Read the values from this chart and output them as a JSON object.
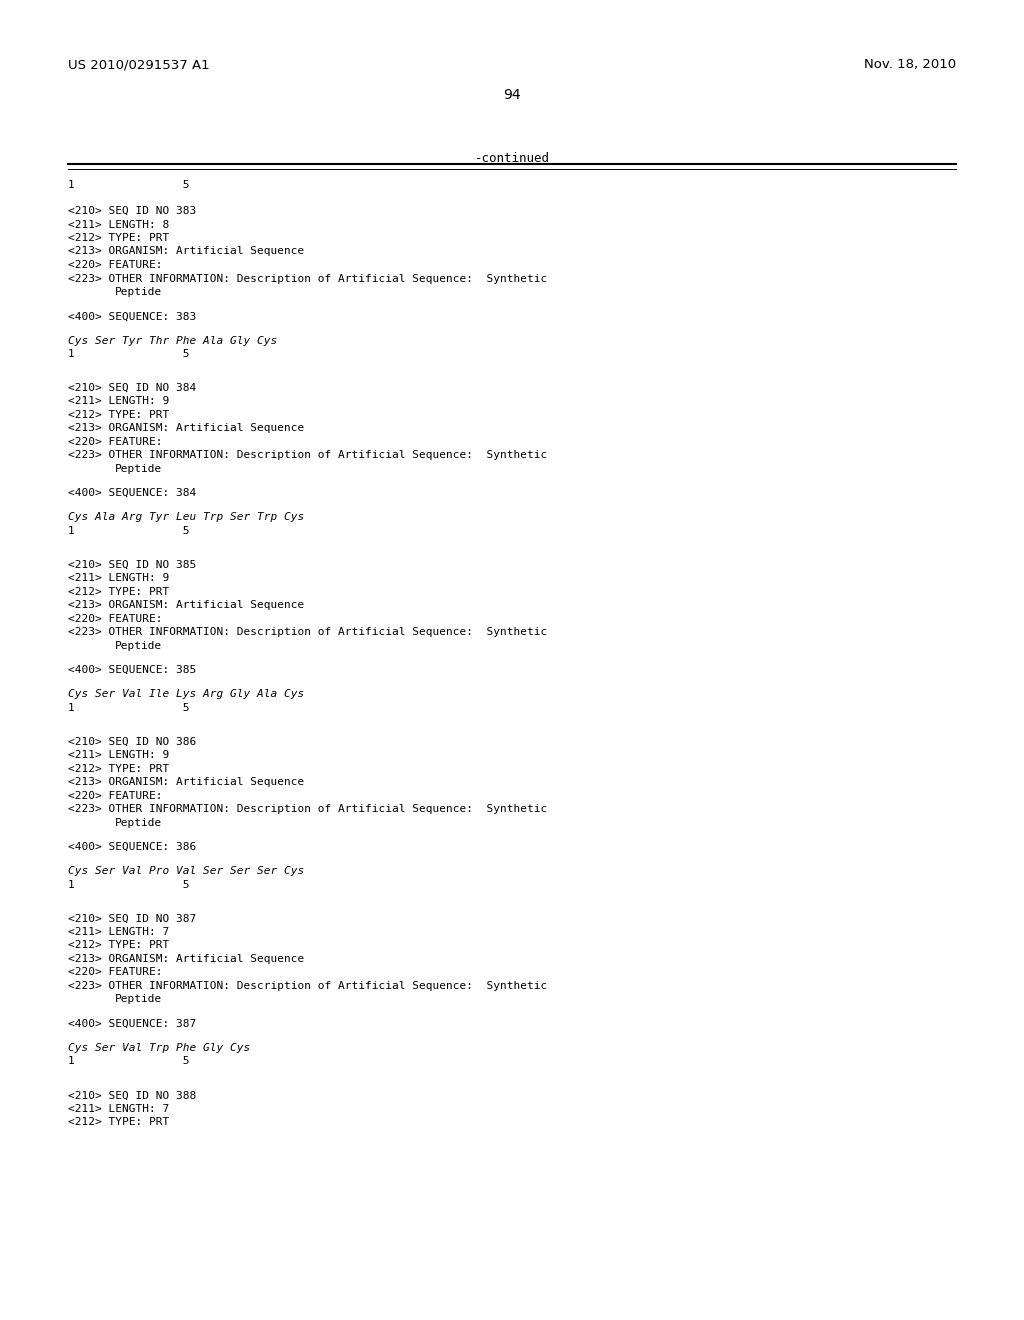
{
  "header_left": "US 2010/0291537 A1",
  "header_right": "Nov. 18, 2010",
  "page_number": "94",
  "continued_label": "-continued",
  "background_color": "#ffffff",
  "text_color": "#000000",
  "sequences": [
    {
      "seq_id": "383",
      "length": "8",
      "seq_line": "Cys Ser Tyr Thr Phe Ala Gly Cys"
    },
    {
      "seq_id": "384",
      "length": "9",
      "seq_line": "Cys Ala Arg Tyr Leu Trp Ser Trp Cys"
    },
    {
      "seq_id": "385",
      "length": "9",
      "seq_line": "Cys Ser Val Ile Lys Arg Gly Ala Cys"
    },
    {
      "seq_id": "386",
      "length": "9",
      "seq_line": "Cys Ser Val Pro Val Ser Ser Ser Cys"
    },
    {
      "seq_id": "387",
      "length": "7",
      "seq_line": "Cys Ser Val Trp Phe Gly Cys"
    },
    {
      "seq_id": "388",
      "length": "7",
      "seq_line": "",
      "partial": true
    }
  ]
}
